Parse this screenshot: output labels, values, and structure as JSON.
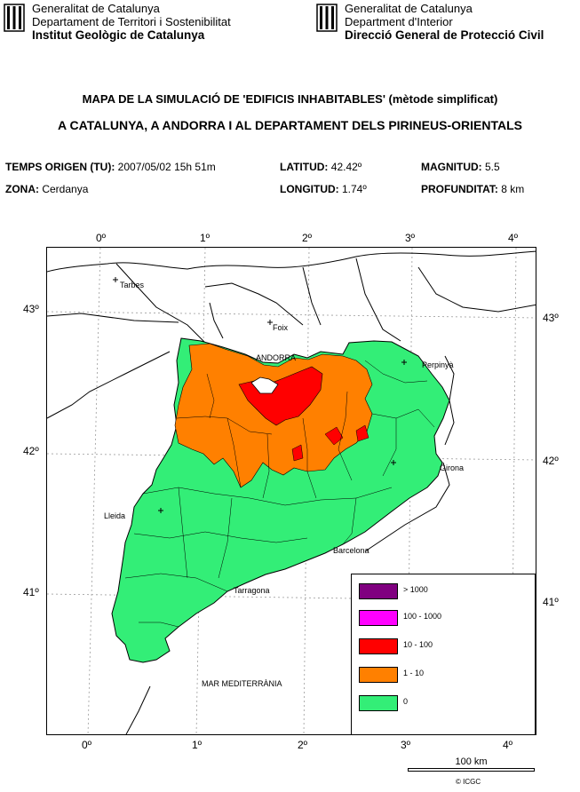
{
  "header": {
    "left": {
      "line1": "Generalitat de Catalunya",
      "line2": "Departament de Territori i Sostenibilitat",
      "line3": "Institut Geològic de Catalunya"
    },
    "right": {
      "line1": "Generalitat de Catalunya",
      "line2": "Department d'Interior",
      "line3": "Direcció General de Protecció Civil"
    },
    "logo_icon": "generalitat-shield-icon"
  },
  "title": {
    "line1": "MAPA DE LA SIMULACIÓ DE 'EDIFICIS INHABITABLES' (mètode simplificat)",
    "line2": "A CATALUNYA, A ANDORRA I AL DEPARTAMENT DELS PIRINEUS-ORIENTALS"
  },
  "info": {
    "temps_label": "TEMPS ORIGEN (TU):",
    "temps_value": "2007/05/02 15h 51m",
    "zona_label": "ZONA:",
    "zona_value": "Cerdanya",
    "latitud_label": "LATITUD:",
    "latitud_value": "42.42º",
    "longitud_label": "LONGITUD:",
    "longitud_value": "1.74º",
    "magnitud_label": "MAGNITUD:",
    "magnitud_value": "5.5",
    "profunditat_label": "PROFUNDITAT:",
    "profunditat_value": "8 km"
  },
  "map": {
    "top_ticks": [
      "0º",
      "1º",
      "2º",
      "3º",
      "4º"
    ],
    "bottom_ticks": [
      "0º",
      "1º",
      "2º",
      "3º",
      "4º"
    ],
    "left_ticks": [
      "43º",
      "42º",
      "41º"
    ],
    "right_ticks": [
      "43º",
      "42º",
      "41º"
    ],
    "places": {
      "tarbes": "Tarbes",
      "foix": "Foix",
      "andorra": "ANDORRA",
      "perpinya": "Perpinyà",
      "girona": "Girona",
      "lleida": "Lleida",
      "barcelona": "Barcelona",
      "tarragona": "Tarragona",
      "sea": "MAR MEDITERRÀNIA"
    },
    "colors": {
      "none": "#33ee77",
      "low": "#ff8000",
      "mid": "#ff0000",
      "high": "#ff00ff",
      "max": "#800080"
    }
  },
  "legend": [
    {
      "label": "> 1000",
      "color": "#800080"
    },
    {
      "label": "100 - 1000",
      "color": "#ff00ff"
    },
    {
      "label": "10 - 100",
      "color": "#ff0000"
    },
    {
      "label": "1 - 10",
      "color": "#ff8000"
    },
    {
      "label": "0",
      "color": "#33ee77"
    }
  ],
  "scale": {
    "label": "100 km"
  },
  "copyright": "© ICGC"
}
